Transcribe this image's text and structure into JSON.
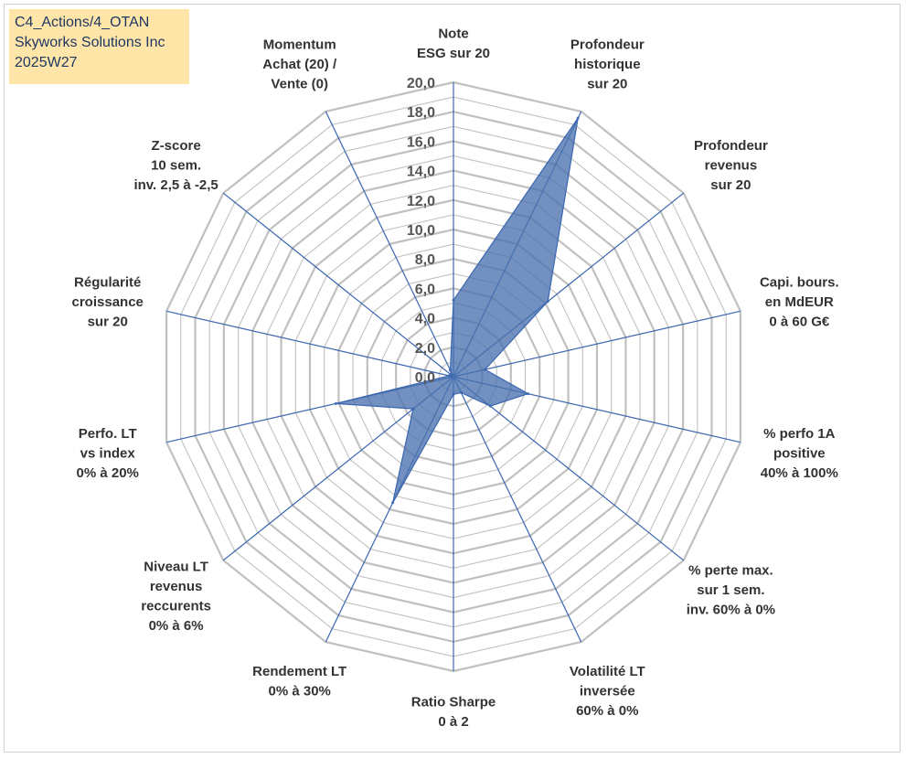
{
  "title_box": {
    "line1": "C4_Actions/4_OTAN",
    "line2": "Skyworks Solutions Inc",
    "line3": "2025W27"
  },
  "colors": {
    "grid": "#c0c0c0",
    "spoke": "#3a66b0",
    "fill": "#4a72b0",
    "title_bg": "#ffe6a8"
  },
  "chart_data": {
    "type": "radar",
    "title": "",
    "r_range": [
      0,
      20
    ],
    "tick_step": 1,
    "tick_labels": [
      "0,0",
      "2,0",
      "4,0",
      "6,0",
      "8,0",
      "10,0",
      "12,0",
      "14,0",
      "16,0",
      "18,0",
      "20,0"
    ],
    "grid": true,
    "axes": [
      [
        "Note",
        "ESG sur 20"
      ],
      [
        "Profondeur",
        "historique",
        "sur 20"
      ],
      [
        "Profondeur",
        "revenus",
        "sur 20"
      ],
      [
        "Capi. bours.",
        "en MdEUR",
        "0 à 60 G€"
      ],
      [
        "% perfo 1A",
        "positive",
        "40% à 100%"
      ],
      [
        "% perte max.",
        "sur 1 sem.",
        "inv. 60% à 0%"
      ],
      [
        "Volatilité LT",
        "inversée",
        "60% à 0%"
      ],
      [
        "Ratio Sharpe",
        "0 à 2"
      ],
      [
        "Rendement LT",
        "0% à 30%"
      ],
      [
        "Niveau LT",
        "revenus",
        "reccurents",
        "0% à 6%"
      ],
      [
        "Perfo. LT",
        "vs index",
        "0% à 20%"
      ],
      [
        "Régularité",
        "croissance",
        "sur 20"
      ],
      [
        "Z-score",
        "10 sem.",
        "inv. 2,5 à -2,5"
      ],
      [
        "Momentum",
        "Achat (20) /",
        "Vente (0)"
      ]
    ],
    "values": [
      5.2,
      19.5,
      8.2,
      2.2,
      5.2,
      3.2,
      1.2,
      1.2,
      9.5,
      3.5,
      8.2,
      0.3,
      0.2,
      0.5
    ]
  }
}
